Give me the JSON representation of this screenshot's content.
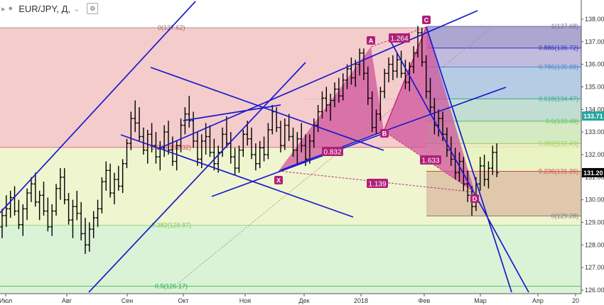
{
  "header": {
    "symbol": "EUR/JPY, Д,",
    "collapse_glyph": "⌄"
  },
  "chart_data": {
    "type": "ohlc-bar",
    "x_tick_labels": [
      "Июл",
      "Авг",
      "Сен",
      "Окт",
      "Ноя",
      "Дек",
      "2018",
      "Фев",
      "Мар",
      "Апр",
      "20"
    ],
    "y_ticks": [
      126,
      127,
      128,
      129,
      130,
      131,
      132,
      133,
      134,
      135,
      136,
      137,
      138
    ],
    "y_tick_labels": [
      "126.00",
      "127.00",
      "128.00",
      "129.00",
      "130.00",
      "131.00",
      "132.00",
      "133.00",
      "134.00",
      "135.00",
      "136.00",
      "137.00",
      "138.00"
    ],
    "ylim": [
      125.8,
      138.4
    ],
    "price_labels": [
      {
        "value": 133.71,
        "text": "133.71",
        "color": "#26a69a"
      },
      {
        "value": 131.2,
        "text": "131.20",
        "color": "#000000"
      }
    ],
    "fib_large": [
      {
        "label": "0(137.62)",
        "value": 137.62,
        "color": "#9a6a6a"
      },
      {
        "label": "0.236(132.32)",
        "value": 132.32,
        "color": "#d04a4a"
      },
      {
        "label": "0.382(128.87)",
        "value": 128.87,
        "color": "#7ec860"
      },
      {
        "label": "0.5(126.17)",
        "value": 126.17,
        "color": "#22aa44"
      }
    ],
    "fib_small": [
      {
        "label": "1(137.68)",
        "value": 137.68,
        "color": "#7070a0"
      },
      {
        "label": "0.886(136.72)",
        "value": 136.72,
        "color": "#3030c8"
      },
      {
        "label": "0.786(135.88)",
        "value": 135.88,
        "color": "#4a8ad0"
      },
      {
        "label": "0.618(134.47)",
        "value": 134.47,
        "color": "#3aaa8a"
      },
      {
        "label": "0.5(133.48)",
        "value": 133.48,
        "color": "#5cc25c"
      },
      {
        "label": "0.382(132.49)",
        "value": 132.49,
        "color": "#9ad05a"
      },
      {
        "label": "0.236(131.26)",
        "value": 131.26,
        "color": "#d04a4a"
      },
      {
        "label": "0(129.28)",
        "value": 129.28,
        "color": "#808080"
      }
    ],
    "harmonic_points": [
      "X",
      "A",
      "B",
      "C",
      "D"
    ],
    "harmonic_ratios": [
      "1.264",
      "0.832",
      "1.633",
      "1.139"
    ],
    "ohlc_bars": [
      [
        128.8,
        129.6,
        128.3,
        129.3
      ],
      [
        129.3,
        130.2,
        128.8,
        129.6
      ],
      [
        129.6,
        130.4,
        129.2,
        130.1
      ],
      [
        130.1,
        130.6,
        129.3,
        129.5
      ],
      [
        129.5,
        130.0,
        128.7,
        128.9
      ],
      [
        128.9,
        129.8,
        128.4,
        129.6
      ],
      [
        129.6,
        130.5,
        129.1,
        130.3
      ],
      [
        130.3,
        131.0,
        129.9,
        130.7
      ],
      [
        130.7,
        131.2,
        129.7,
        129.9
      ],
      [
        129.9,
        130.4,
        129.1,
        130.2
      ],
      [
        130.2,
        130.8,
        129.3,
        129.5
      ],
      [
        129.5,
        130.1,
        128.6,
        128.8
      ],
      [
        128.8,
        129.8,
        128.4,
        129.5
      ],
      [
        129.5,
        130.7,
        129.3,
        130.5
      ],
      [
        130.5,
        131.4,
        130.0,
        131.0
      ],
      [
        131.0,
        131.4,
        129.8,
        130.0
      ],
      [
        130.0,
        130.3,
        128.9,
        129.1
      ],
      [
        129.1,
        130.0,
        128.3,
        129.7
      ],
      [
        129.7,
        130.4,
        129.1,
        129.4
      ],
      [
        129.4,
        129.9,
        128.2,
        128.5
      ],
      [
        128.5,
        129.2,
        127.6,
        128.0
      ],
      [
        128.0,
        129.0,
        127.7,
        128.7
      ],
      [
        128.7,
        129.5,
        128.3,
        129.2
      ],
      [
        129.2,
        130.0,
        128.8,
        129.6
      ],
      [
        129.6,
        131.0,
        129.4,
        130.8
      ],
      [
        130.8,
        131.7,
        130.4,
        131.3
      ],
      [
        131.3,
        131.6,
        130.1,
        130.3
      ],
      [
        130.3,
        131.2,
        129.8,
        130.9
      ],
      [
        130.9,
        131.5,
        130.4,
        130.6
      ],
      [
        130.6,
        131.8,
        130.3,
        131.6
      ],
      [
        131.6,
        132.7,
        131.4,
        132.5
      ],
      [
        132.5,
        133.9,
        132.2,
        133.6
      ],
      [
        133.6,
        134.4,
        133.0,
        133.4
      ],
      [
        133.4,
        134.1,
        132.6,
        132.8
      ],
      [
        132.8,
        133.2,
        132.0,
        132.2
      ],
      [
        132.2,
        133.1,
        131.6,
        132.9
      ],
      [
        132.9,
        133.4,
        132.1,
        132.4
      ],
      [
        132.4,
        133.0,
        131.6,
        131.9
      ],
      [
        131.9,
        132.6,
        131.3,
        132.3
      ],
      [
        132.3,
        133.3,
        131.9,
        133.0
      ],
      [
        133.0,
        133.5,
        132.0,
        132.2
      ],
      [
        132.2,
        132.8,
        131.5,
        131.7
      ],
      [
        131.7,
        132.6,
        131.3,
        132.4
      ],
      [
        132.4,
        133.6,
        132.1,
        133.3
      ],
      [
        133.3,
        134.1,
        132.9,
        133.8
      ],
      [
        133.8,
        134.6,
        133.2,
        133.5
      ],
      [
        133.5,
        133.9,
        132.3,
        132.6
      ],
      [
        132.6,
        133.0,
        131.5,
        131.8
      ],
      [
        131.8,
        132.9,
        131.4,
        132.6
      ],
      [
        132.6,
        133.4,
        132.0,
        132.8
      ],
      [
        132.8,
        133.3,
        131.9,
        132.1
      ],
      [
        132.1,
        132.7,
        131.3,
        131.6
      ],
      [
        131.6,
        132.4,
        131.2,
        132.1
      ],
      [
        132.1,
        133.2,
        131.9,
        132.9
      ],
      [
        132.9,
        133.7,
        132.3,
        132.5
      ],
      [
        132.5,
        133.0,
        131.6,
        131.9
      ],
      [
        131.9,
        132.3,
        131.1,
        131.4
      ],
      [
        131.4,
        132.4,
        131.2,
        132.2
      ],
      [
        132.2,
        133.1,
        131.9,
        132.9
      ],
      [
        132.9,
        133.5,
        132.4,
        132.7
      ],
      [
        132.7,
        133.2,
        131.8,
        132.0
      ],
      [
        132.0,
        132.5,
        131.3,
        131.6
      ],
      [
        131.6,
        132.6,
        131.4,
        132.3
      ],
      [
        132.3,
        132.8,
        131.7,
        132.0
      ],
      [
        132.0,
        133.4,
        131.8,
        133.1
      ],
      [
        133.1,
        134.2,
        132.9,
        133.9
      ],
      [
        133.9,
        134.1,
        133.0,
        133.2
      ],
      [
        133.2,
        133.5,
        132.1,
        132.4
      ],
      [
        132.4,
        133.6,
        132.2,
        133.3
      ],
      [
        133.3,
        133.8,
        132.6,
        132.8
      ],
      [
        132.8,
        133.2,
        131.9,
        132.2
      ],
      [
        132.2,
        133.0,
        131.6,
        132.7
      ],
      [
        132.7,
        133.4,
        132.1,
        132.4
      ],
      [
        132.4,
        132.9,
        131.5,
        131.8
      ],
      [
        131.8,
        132.9,
        131.6,
        132.6
      ],
      [
        132.6,
        133.6,
        132.3,
        133.3
      ],
      [
        133.3,
        134.2,
        133.0,
        133.9
      ],
      [
        133.9,
        134.8,
        133.6,
        134.5
      ],
      [
        134.5,
        135.0,
        133.9,
        134.2
      ],
      [
        134.2,
        134.7,
        133.5,
        134.4
      ],
      [
        134.4,
        135.2,
        134.1,
        134.9
      ],
      [
        134.9,
        135.4,
        134.3,
        134.6
      ],
      [
        134.6,
        135.6,
        134.4,
        135.3
      ],
      [
        135.3,
        136.0,
        134.9,
        135.8
      ],
      [
        135.8,
        136.3,
        135.1,
        135.4
      ],
      [
        135.4,
        136.2,
        135.0,
        136.0
      ],
      [
        136.0,
        136.7,
        135.5,
        136.5
      ],
      [
        136.5,
        136.7,
        135.3,
        135.6
      ],
      [
        135.6,
        135.9,
        134.2,
        134.5
      ],
      [
        134.5,
        134.8,
        133.0,
        133.2
      ],
      [
        133.2,
        134.0,
        132.9,
        133.8
      ],
      [
        133.8,
        135.0,
        133.5,
        134.8
      ],
      [
        134.8,
        135.8,
        134.5,
        135.6
      ],
      [
        135.6,
        136.3,
        135.2,
        136.0
      ],
      [
        136.0,
        136.4,
        135.3,
        135.7
      ],
      [
        135.7,
        136.5,
        135.4,
        136.2
      ],
      [
        136.2,
        136.6,
        135.4,
        135.6
      ],
      [
        135.6,
        136.2,
        134.9,
        135.2
      ],
      [
        135.2,
        136.1,
        134.8,
        135.9
      ],
      [
        135.9,
        136.8,
        135.6,
        136.5
      ],
      [
        136.5,
        137.7,
        136.3,
        137.4
      ],
      [
        137.4,
        137.6,
        135.9,
        136.1
      ],
      [
        136.1,
        136.4,
        134.5,
        134.8
      ],
      [
        134.8,
        135.4,
        133.8,
        134.1
      ],
      [
        134.1,
        134.5,
        132.9,
        133.3
      ],
      [
        133.3,
        134.0,
        132.8,
        133.6
      ],
      [
        133.6,
        133.9,
        132.6,
        132.9
      ],
      [
        132.9,
        133.2,
        131.9,
        132.2
      ],
      [
        132.2,
        132.8,
        131.5,
        131.8
      ],
      [
        131.8,
        132.3,
        130.9,
        131.2
      ],
      [
        131.2,
        132.1,
        130.8,
        131.7
      ],
      [
        131.7,
        131.9,
        130.4,
        130.7
      ],
      [
        130.7,
        131.3,
        129.9,
        130.2
      ],
      [
        130.2,
        130.6,
        129.3,
        129.7
      ],
      [
        129.7,
        131.0,
        129.5,
        130.7
      ],
      [
        130.7,
        131.9,
        130.4,
        131.5
      ],
      [
        131.5,
        132.0,
        130.6,
        130.9
      ],
      [
        130.9,
        131.7,
        130.5,
        131.4
      ],
      [
        131.4,
        132.4,
        131.1,
        132.1
      ],
      [
        132.1,
        132.5,
        131.0,
        131.2
      ]
    ]
  }
}
